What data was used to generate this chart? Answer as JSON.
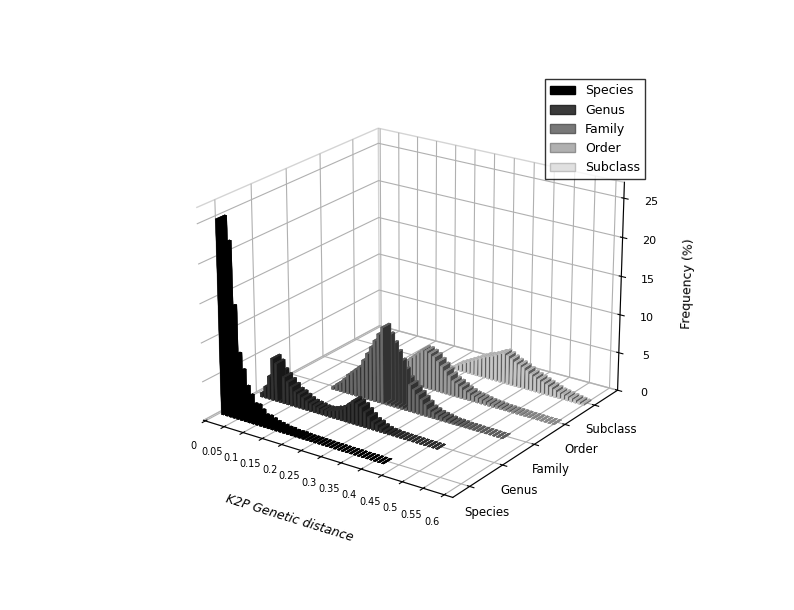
{
  "xlabel": "K2P Genetic distance",
  "ylabel": "Frequency (%)",
  "taxonomic_levels": [
    "Species",
    "Genus",
    "Family",
    "Order",
    "Subclass"
  ],
  "colors": [
    "#000000",
    "#3a3a3a",
    "#787878",
    "#b0b0b0",
    "#e0e0e0"
  ],
  "edge_colors": [
    "#000000",
    "#2a2a2a",
    "#606060",
    "#909090",
    "#c0c0c0"
  ],
  "x_step": 0.01,
  "n_bins": 61,
  "yticks": [
    0,
    5,
    10,
    15,
    20,
    25
  ],
  "x_tick_vals": [
    0,
    0.05,
    0.1,
    0.15,
    0.2,
    0.25,
    0.3,
    0.35,
    0.4,
    0.45,
    0.5,
    0.55,
    0.6
  ],
  "species_data": [
    0,
    25,
    22,
    14,
    8,
    6,
    4,
    3,
    2,
    2,
    1.5,
    1,
    1,
    0.8,
    0.6,
    0.5,
    0.4,
    0.3,
    0.3,
    0.2,
    0.2,
    0.2,
    0.15,
    0.1,
    0.1,
    0.1,
    0.08,
    0.07,
    0.06,
    0.05,
    0.05,
    0.04,
    0.04,
    0.03,
    0.03,
    0.03,
    0.02,
    0.02,
    0.02,
    0.02,
    0.01,
    0.01,
    0.01,
    0.0,
    0.0,
    0.0,
    0.0,
    0.0,
    0.0,
    0.0,
    0.0,
    0.0,
    0.0,
    0.0,
    0.0,
    0.0,
    0.0,
    0.0,
    0.0,
    0.0,
    0.0
  ],
  "genus_data": [
    0,
    0,
    0.5,
    1.5,
    3.0,
    5.5,
    5.0,
    4.0,
    3.5,
    3.0,
    2.5,
    2.0,
    1.8,
    1.5,
    1.2,
    1.0,
    0.9,
    0.8,
    0.7,
    0.7,
    0.8,
    1.0,
    1.2,
    1.5,
    2.0,
    2.5,
    3.0,
    2.8,
    2.5,
    2.0,
    1.5,
    1.0,
    0.8,
    0.5,
    0.3,
    0.2,
    0.15,
    0.1,
    0.08,
    0.06,
    0.05,
    0.04,
    0.03,
    0.02,
    0.02,
    0.01,
    0.01,
    0.01,
    0.0,
    0.0,
    0.0,
    0.0,
    0.0,
    0.0,
    0.0,
    0.0,
    0.0,
    0.0,
    0.0,
    0.0,
    0.0
  ],
  "family_data": [
    0,
    0,
    0,
    0,
    0,
    0,
    0,
    0,
    0,
    0,
    0,
    0,
    0.3,
    0.8,
    1.2,
    1.8,
    2.5,
    3.0,
    3.5,
    4.0,
    5.0,
    6.0,
    7.0,
    8.0,
    9.0,
    10.0,
    9.0,
    8.0,
    7.0,
    6.0,
    5.0,
    4.0,
    3.5,
    3.0,
    2.5,
    2.0,
    1.5,
    1.0,
    0.8,
    0.6,
    0.5,
    0.4,
    0.3,
    0.2,
    0.2,
    0.15,
    0.1,
    0.1,
    0.08,
    0.06,
    0.05,
    0.04,
    0.03,
    0.02,
    0.01,
    0.01,
    0.0,
    0.0,
    0.0,
    0.0,
    0.0
  ],
  "order_data": [
    0,
    0,
    0,
    0,
    0,
    0,
    0,
    0,
    0,
    0,
    0,
    0,
    0,
    0,
    0,
    0,
    0,
    0.2,
    0.4,
    0.8,
    1.2,
    1.8,
    2.5,
    3.0,
    3.5,
    4.0,
    4.5,
    5.0,
    5.0,
    4.8,
    4.5,
    4.0,
    3.5,
    3.0,
    2.5,
    2.0,
    1.8,
    1.5,
    1.2,
    1.0,
    0.8,
    0.7,
    0.6,
    0.5,
    0.4,
    0.35,
    0.3,
    0.25,
    0.2,
    0.18,
    0.15,
    0.12,
    0.1,
    0.08,
    0.06,
    0.05,
    0.04,
    0.03,
    0.02,
    0.01,
    0.01
  ],
  "subclass_data": [
    0,
    0,
    0,
    0,
    0,
    0,
    0,
    0,
    0,
    0,
    0,
    0,
    0,
    0,
    0,
    0,
    0,
    0,
    0,
    0,
    0,
    0,
    0,
    0,
    0,
    0,
    0,
    0.3,
    0.7,
    1.0,
    1.3,
    1.6,
    1.9,
    2.2,
    2.5,
    2.8,
    3.0,
    3.2,
    3.5,
    3.8,
    4.0,
    3.8,
    3.5,
    3.2,
    3.0,
    2.8,
    2.5,
    2.2,
    2.0,
    1.8,
    1.6,
    1.4,
    1.2,
    1.0,
    0.8,
    0.7,
    0.6,
    0.5,
    0.4,
    0.3,
    0.2
  ]
}
